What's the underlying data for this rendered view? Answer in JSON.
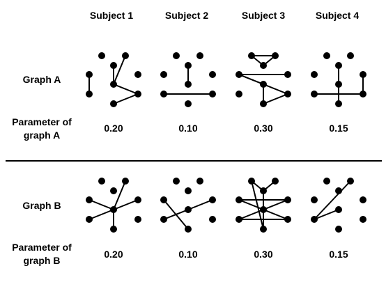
{
  "subjects": [
    "Subject 1",
    "Subject 2",
    "Subject 3",
    "Subject 4"
  ],
  "graph_a": {
    "label": "Graph A",
    "param_label_line1": "Parameter of",
    "param_label_line2": "graph A",
    "params": [
      "0.20",
      "0.10",
      "0.30",
      "0.15"
    ]
  },
  "graph_b": {
    "label": "Graph B",
    "param_label_line1": "Parameter of",
    "param_label_line2": "graph B",
    "params": [
      "0.20",
      "0.10",
      "0.30",
      "0.15"
    ]
  },
  "colors": {
    "node": "#000000",
    "edge": "#000000",
    "divider": "#000000"
  }
}
